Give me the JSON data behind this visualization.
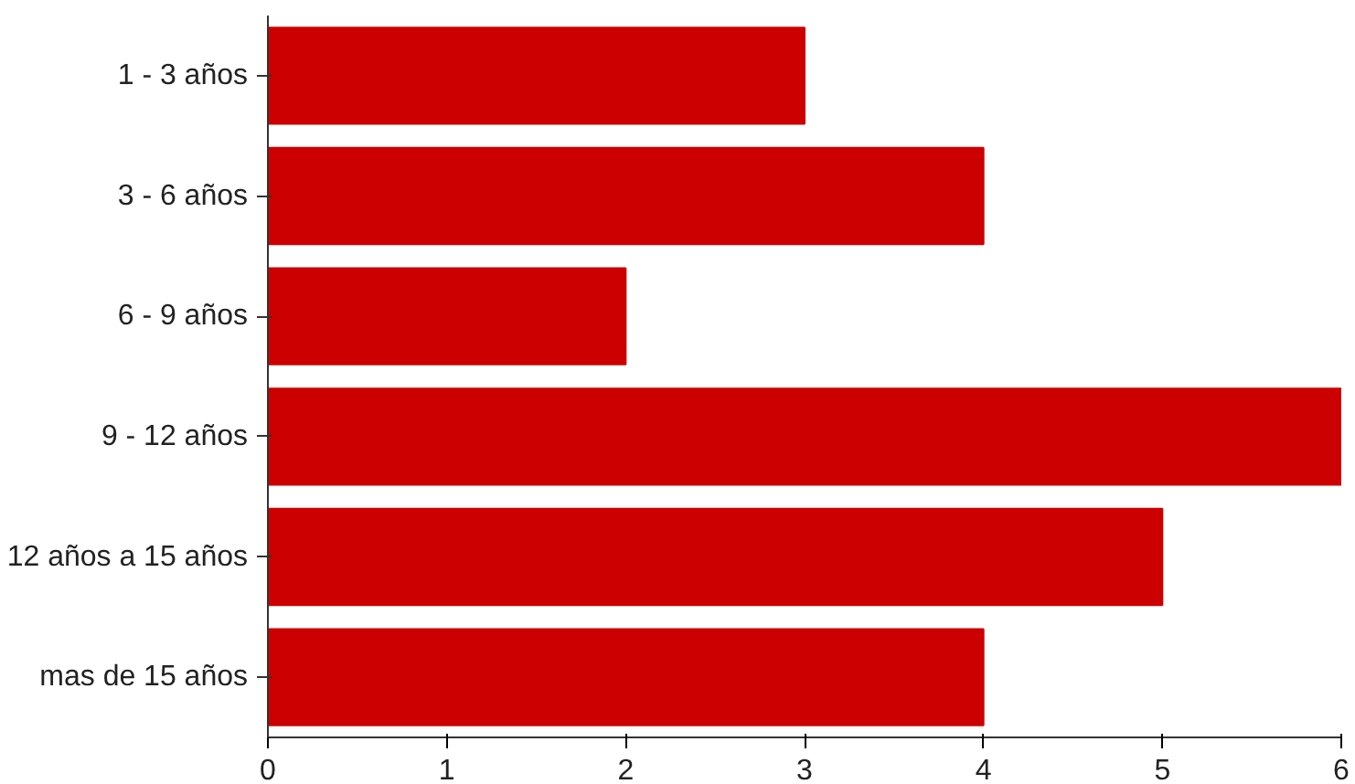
{
  "chart_data": {
    "type": "bar",
    "orientation": "horizontal",
    "categories": [
      "1 - 3 años",
      "3 - 6 años",
      "6 - 9 años",
      "9 - 12 años",
      "12 años a 15 años",
      "mas de 15 años"
    ],
    "values": [
      3,
      4,
      2,
      6,
      5,
      4
    ],
    "color": "#cc0000",
    "xlim": [
      0,
      6
    ],
    "xticks": [
      0,
      1,
      2,
      3,
      4,
      5,
      6
    ],
    "grid": false
  }
}
